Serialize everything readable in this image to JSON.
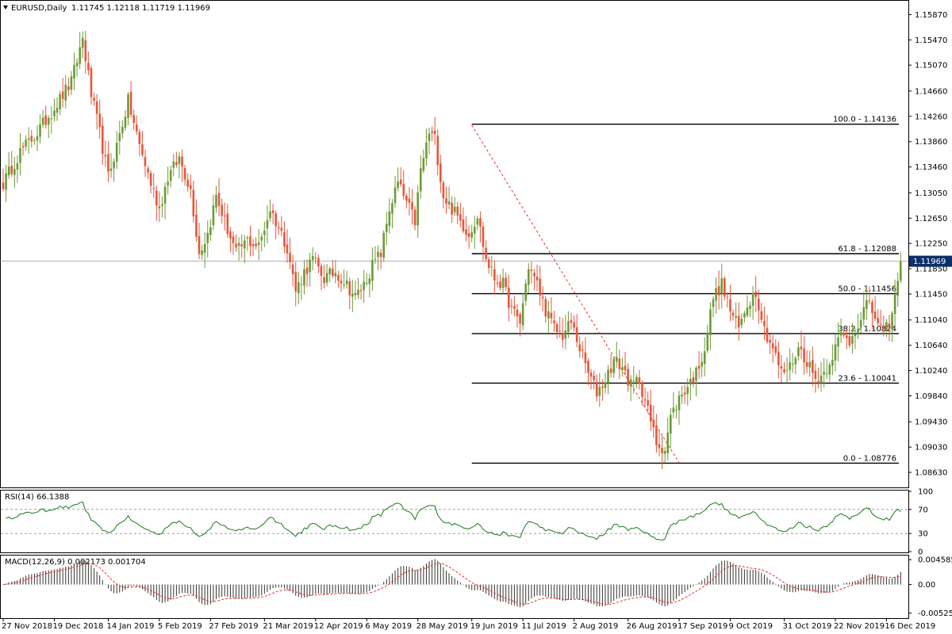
{
  "header": {
    "symbol": "EURUSD,Daily",
    "ohlc": "1.11745 1.12118 1.11719 1.11969"
  },
  "colors": {
    "bull": "#6b9b37",
    "bear": "#e8553a",
    "fib_line": "#000000",
    "trend_line": "#e8302a",
    "indicator": "#1a7a1a",
    "signal": "#e8302a",
    "price_tag_bg": "#0b2f6b"
  },
  "chart_data": [
    {
      "type": "candlestick",
      "name": "price",
      "title": "EURUSD,Daily",
      "ylim": [
        1.0843,
        1.1605
      ],
      "y_ticks": [
        "1.15870",
        "1.15470",
        "1.15070",
        "1.14660",
        "1.14260",
        "1.13860",
        "1.13460",
        "1.13050",
        "1.12650",
        "1.12250",
        "1.11850",
        "1.11450",
        "1.11040",
        "1.10640",
        "1.10240",
        "1.09840",
        "1.09430",
        "1.09030",
        "1.08630"
      ],
      "current_price": "1.11969",
      "x_ticks": [
        "27 Nov 2018",
        "19 Dec 2018",
        "14 Jan 2019",
        "5 Feb 2019",
        "27 Feb 2019",
        "21 Mar 2019",
        "12 Apr 2019",
        "6 May 2019",
        "28 May 2019",
        "19 Jun 2019",
        "11 Jul 2019",
        "2 Aug 2019",
        "26 Aug 2019",
        "17 Sep 2019",
        "9 Oct 2019",
        "31 Oct 2019",
        "22 Nov 2019",
        "16 Dec 2019"
      ],
      "close_anchors": [
        [
          0,
          1.132
        ],
        [
          6,
          1.137
        ],
        [
          12,
          1.14
        ],
        [
          18,
          1.144
        ],
        [
          24,
          1.148
        ],
        [
          28,
          1.155
        ],
        [
          31,
          1.146
        ],
        [
          34,
          1.14
        ],
        [
          37,
          1.133
        ],
        [
          40,
          1.138
        ],
        [
          44,
          1.145
        ],
        [
          48,
          1.138
        ],
        [
          52,
          1.132
        ],
        [
          55,
          1.128
        ],
        [
          58,
          1.133
        ],
        [
          62,
          1.136
        ],
        [
          66,
          1.131
        ],
        [
          69,
          1.121
        ],
        [
          72,
          1.124
        ],
        [
          75,
          1.13
        ],
        [
          78,
          1.126
        ],
        [
          82,
          1.121
        ],
        [
          86,
          1.123
        ],
        [
          90,
          1.122
        ],
        [
          94,
          1.128
        ],
        [
          97,
          1.125
        ],
        [
          100,
          1.122
        ],
        [
          103,
          1.115
        ],
        [
          106,
          1.118
        ],
        [
          109,
          1.12
        ],
        [
          113,
          1.117
        ],
        [
          117,
          1.118
        ],
        [
          121,
          1.116
        ],
        [
          124,
          1.114
        ],
        [
          127,
          1.116
        ],
        [
          130,
          1.119
        ],
        [
          133,
          1.121
        ],
        [
          136,
          1.128
        ],
        [
          139,
          1.132
        ],
        [
          142,
          1.129
        ],
        [
          145,
          1.126
        ],
        [
          147,
          1.134
        ],
        [
          150,
          1.14
        ],
        [
          152,
          1.139
        ],
        [
          155,
          1.13
        ],
        [
          158,
          1.128
        ],
        [
          161,
          1.126
        ],
        [
          164,
          1.124
        ],
        [
          167,
          1.127
        ],
        [
          170,
          1.12
        ],
        [
          173,
          1.117
        ],
        [
          176,
          1.116
        ],
        [
          179,
          1.112
        ],
        [
          182,
          1.11
        ],
        [
          185,
          1.119
        ],
        [
          188,
          1.116
        ],
        [
          191,
          1.112
        ],
        [
          194,
          1.109
        ],
        [
          197,
          1.108
        ],
        [
          200,
          1.11
        ],
        [
          203,
          1.106
        ],
        [
          206,
          1.102
        ],
        [
          209,
          1.099
        ],
        [
          212,
          1.101
        ],
        [
          215,
          1.104
        ],
        [
          218,
          1.103
        ],
        [
          221,
          1.1
        ],
        [
          224,
          1.101
        ],
        [
          227,
          1.096
        ],
        [
          230,
          1.091
        ],
        [
          233,
          1.09
        ],
        [
          235,
          1.095
        ],
        [
          238,
          1.098
        ],
        [
          241,
          1.1
        ],
        [
          244,
          1.102
        ],
        [
          247,
          1.106
        ],
        [
          250,
          1.114
        ],
        [
          253,
          1.116
        ],
        [
          256,
          1.112
        ],
        [
          259,
          1.109
        ],
        [
          262,
          1.113
        ],
        [
          265,
          1.115
        ],
        [
          268,
          1.109
        ],
        [
          271,
          1.106
        ],
        [
          274,
          1.102
        ],
        [
          277,
          1.103
        ],
        [
          280,
          1.106
        ],
        [
          283,
          1.104
        ],
        [
          286,
          1.101
        ],
        [
          289,
          1.102
        ],
        [
          292,
          1.105
        ],
        [
          295,
          1.108
        ],
        [
          298,
          1.107
        ],
        [
          301,
          1.11
        ],
        [
          304,
          1.113
        ],
        [
          307,
          1.111
        ],
        [
          310,
          1.108
        ],
        [
          313,
          1.111
        ],
        [
          316,
          1.1197
        ]
      ],
      "trendline": {
        "from": [
          "19 Jun 2019",
          1.1412
        ],
        "to": [
          "17 Sep 2019",
          1.0878
        ]
      },
      "fib_levels": [
        {
          "label": "100.0 - 1.14136",
          "value": 1.14136
        },
        {
          "label": "61.8 - 1.12088",
          "value": 1.12088
        },
        {
          "label": "50.0 - 1.11456",
          "value": 1.11456
        },
        {
          "label": "38.2 - 1.10824",
          "value": 1.10824
        },
        {
          "label": "23.6 - 1.10041",
          "value": 1.10041
        },
        {
          "label": "0.0 - 1.08776",
          "value": 1.08776
        }
      ]
    },
    {
      "type": "line",
      "name": "rsi",
      "title": "RSI(14) 66.1388",
      "ylim": [
        0,
        100
      ],
      "y_ticks": [
        "100",
        "70",
        "30",
        "0"
      ],
      "levels": [
        70,
        30
      ],
      "last_value": 66.14
    },
    {
      "type": "histogram",
      "name": "macd",
      "title": "MACD(12,26,9) 0.002173 0.001704",
      "ylim": [
        -0.0059,
        0.0052
      ],
      "y_ticks": [
        "0.004585",
        "0.00",
        "-0.005254"
      ],
      "last_macd": 0.002173,
      "last_signal": 0.001704
    }
  ]
}
